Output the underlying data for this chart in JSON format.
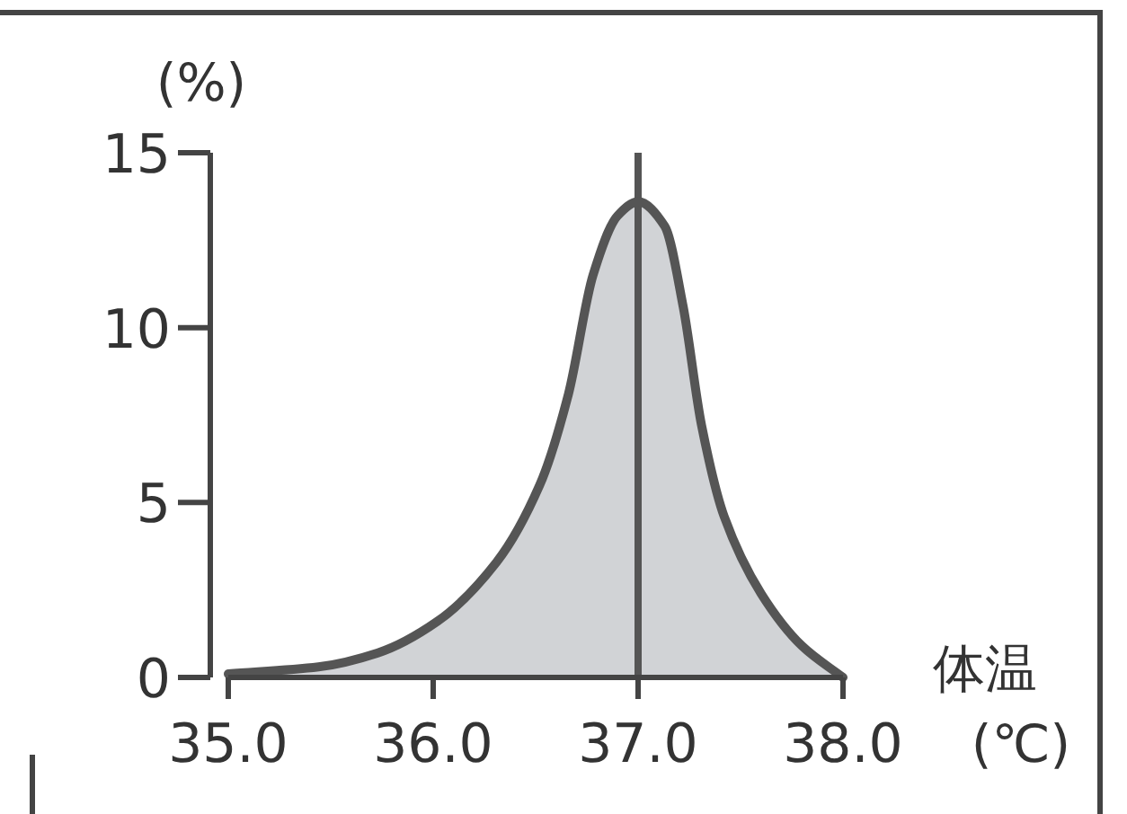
{
  "chart_data": {
    "type": "area",
    "xlabel": "体温",
    "ylabel": "(%)",
    "annotations": [
      "(℃)"
    ],
    "xlim": [
      35,
      38
    ],
    "xticks": [
      {
        "value": 35,
        "label": "35.0"
      },
      {
        "value": 36,
        "label": "36.0"
      },
      {
        "value": 37,
        "label": "37.0"
      },
      {
        "value": 38,
        "label": "38.0"
      }
    ],
    "ylim": [
      0,
      15
    ],
    "yticks": [
      0,
      5,
      10,
      15
    ],
    "grid": false,
    "series": [
      {
        "color": "#555555",
        "x": [
          35.0,
          35.44,
          35.73,
          36.02,
          36.31,
          36.52,
          36.66,
          36.78,
          36.9,
          37.0,
          37.13,
          37.22,
          37.31,
          37.42,
          37.6,
          37.8,
          38.0
        ],
        "values": [
          0.1,
          0.3,
          0.7,
          1.6,
          3.3,
          5.5,
          8.1,
          11.5,
          13.2,
          13.6,
          12.9,
          10.6,
          7.2,
          4.6,
          2.4,
          0.9,
          0
        ]
      }
    ],
    "ref_lines": [
      {
        "axis": "x",
        "value": 37,
        "color": "#555555"
      }
    ]
  }
}
